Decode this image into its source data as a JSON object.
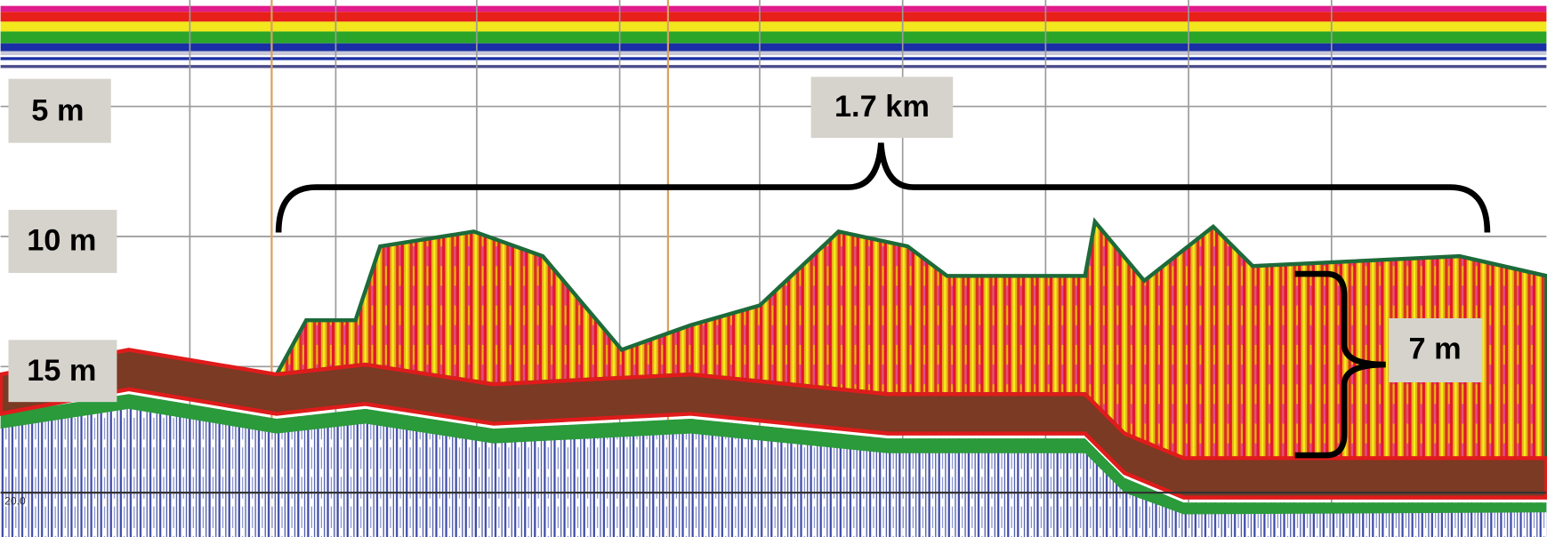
{
  "annotations": {
    "depth_labels": [
      "5 m",
      "10 m",
      "15 m"
    ],
    "distance_label": "1.7 km",
    "height_label": "7 m",
    "scale_label": "20.0"
  }
}
